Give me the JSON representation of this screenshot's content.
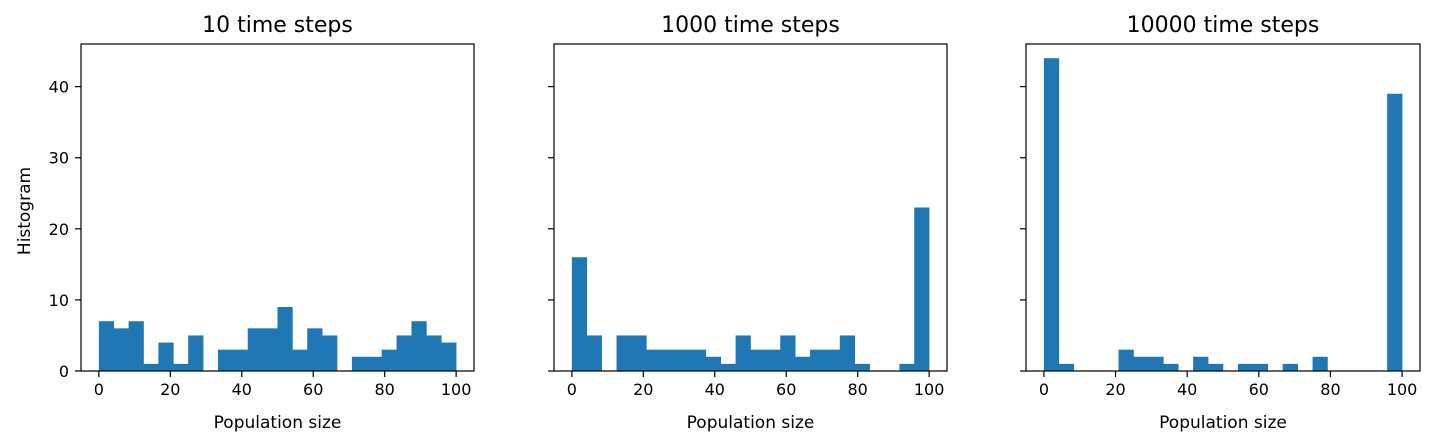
{
  "chart_data": [
    {
      "type": "bar",
      "title": "10 time steps",
      "xlabel": "Population size",
      "ylabel": "Histogram",
      "xlim": [
        -5,
        105
      ],
      "ylim": [
        0,
        46
      ],
      "xticks": [
        0,
        20,
        40,
        60,
        80,
        100
      ],
      "yticks": [
        0,
        10,
        20,
        30,
        40
      ],
      "show_ytick_labels": true,
      "grid": false,
      "bin_width": 4.17,
      "bins": [
        {
          "x": 0,
          "y": 7
        },
        {
          "x": 4.17,
          "y": 6
        },
        {
          "x": 8.33,
          "y": 7
        },
        {
          "x": 12.5,
          "y": 1
        },
        {
          "x": 16.67,
          "y": 4
        },
        {
          "x": 20.83,
          "y": 1
        },
        {
          "x": 25,
          "y": 5
        },
        {
          "x": 29.17,
          "y": 0
        },
        {
          "x": 33.33,
          "y": 3
        },
        {
          "x": 37.5,
          "y": 3
        },
        {
          "x": 41.67,
          "y": 6
        },
        {
          "x": 45.83,
          "y": 6
        },
        {
          "x": 50,
          "y": 9
        },
        {
          "x": 54.17,
          "y": 3
        },
        {
          "x": 58.33,
          "y": 6
        },
        {
          "x": 62.5,
          "y": 5
        },
        {
          "x": 66.67,
          "y": 0
        },
        {
          "x": 70.83,
          "y": 2
        },
        {
          "x": 75,
          "y": 2
        },
        {
          "x": 79.17,
          "y": 3
        },
        {
          "x": 83.33,
          "y": 5
        },
        {
          "x": 87.5,
          "y": 7
        },
        {
          "x": 91.67,
          "y": 5
        },
        {
          "x": 95.83,
          "y": 4
        }
      ],
      "color": "#1f77b4"
    },
    {
      "type": "bar",
      "title": "1000 time steps",
      "xlabel": "Population size",
      "ylabel": "",
      "xlim": [
        -5,
        105
      ],
      "ylim": [
        0,
        46
      ],
      "xticks": [
        0,
        20,
        40,
        60,
        80,
        100
      ],
      "yticks": [
        0,
        10,
        20,
        30,
        40
      ],
      "show_ytick_labels": false,
      "grid": false,
      "bin_width": 4.17,
      "bins": [
        {
          "x": 0,
          "y": 16
        },
        {
          "x": 4.17,
          "y": 5
        },
        {
          "x": 8.33,
          "y": 0
        },
        {
          "x": 12.5,
          "y": 5
        },
        {
          "x": 16.67,
          "y": 5
        },
        {
          "x": 20.83,
          "y": 3
        },
        {
          "x": 25,
          "y": 3
        },
        {
          "x": 29.17,
          "y": 3
        },
        {
          "x": 33.33,
          "y": 3
        },
        {
          "x": 37.5,
          "y": 2
        },
        {
          "x": 41.67,
          "y": 1
        },
        {
          "x": 45.83,
          "y": 5
        },
        {
          "x": 50,
          "y": 3
        },
        {
          "x": 54.17,
          "y": 3
        },
        {
          "x": 58.33,
          "y": 5
        },
        {
          "x": 62.5,
          "y": 2
        },
        {
          "x": 66.67,
          "y": 3
        },
        {
          "x": 70.83,
          "y": 3
        },
        {
          "x": 75,
          "y": 5
        },
        {
          "x": 79.17,
          "y": 1
        },
        {
          "x": 83.33,
          "y": 0
        },
        {
          "x": 87.5,
          "y": 0
        },
        {
          "x": 91.67,
          "y": 1
        },
        {
          "x": 95.83,
          "y": 23
        }
      ],
      "color": "#1f77b4"
    },
    {
      "type": "bar",
      "title": "10000 time steps",
      "xlabel": "Population size",
      "ylabel": "",
      "xlim": [
        -5,
        105
      ],
      "ylim": [
        0,
        46
      ],
      "xticks": [
        0,
        20,
        40,
        60,
        80,
        100
      ],
      "yticks": [
        0,
        10,
        20,
        30,
        40
      ],
      "show_ytick_labels": false,
      "grid": false,
      "bin_width": 4.17,
      "bins": [
        {
          "x": 0,
          "y": 44
        },
        {
          "x": 4.17,
          "y": 1
        },
        {
          "x": 8.33,
          "y": 0
        },
        {
          "x": 12.5,
          "y": 0
        },
        {
          "x": 16.67,
          "y": 0
        },
        {
          "x": 20.83,
          "y": 3
        },
        {
          "x": 25,
          "y": 2
        },
        {
          "x": 29.17,
          "y": 2
        },
        {
          "x": 33.33,
          "y": 1
        },
        {
          "x": 37.5,
          "y": 0
        },
        {
          "x": 41.67,
          "y": 2
        },
        {
          "x": 45.83,
          "y": 1
        },
        {
          "x": 50,
          "y": 0
        },
        {
          "x": 54.17,
          "y": 1
        },
        {
          "x": 58.33,
          "y": 1
        },
        {
          "x": 62.5,
          "y": 0
        },
        {
          "x": 66.67,
          "y": 1
        },
        {
          "x": 70.83,
          "y": 0
        },
        {
          "x": 75,
          "y": 2
        },
        {
          "x": 79.17,
          "y": 0
        },
        {
          "x": 83.33,
          "y": 0
        },
        {
          "x": 87.5,
          "y": 0
        },
        {
          "x": 91.67,
          "y": 0
        },
        {
          "x": 95.83,
          "y": 39
        }
      ],
      "color": "#1f77b4"
    }
  ]
}
